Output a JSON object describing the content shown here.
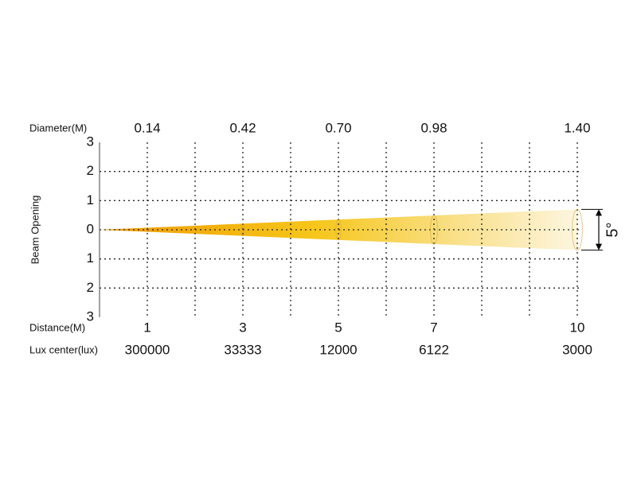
{
  "chart_data": {
    "type": "beam",
    "y_label": "Beam Opening",
    "x_label": "Distance(M)",
    "x": [
      1,
      3,
      5,
      7,
      10
    ],
    "xlim": [
      0,
      10
    ],
    "xticks": [
      1,
      2,
      3,
      4,
      5,
      6,
      7,
      8,
      9,
      10
    ],
    "ylim": [
      -3,
      3
    ],
    "yticks": [
      {
        "value": -3,
        "label": "3"
      },
      {
        "value": -2,
        "label": "2"
      },
      {
        "value": -1,
        "label": "1"
      },
      0,
      1,
      2,
      3
    ],
    "grid": true,
    "series": [
      {
        "name": "Diameter(M)",
        "values": [
          0.14,
          0.42,
          0.7,
          0.98,
          1.4
        ],
        "value_labels": [
          "0.14",
          "0.42",
          "0.70",
          "0.98",
          "1.40"
        ],
        "color": "#f2a900"
      },
      {
        "name": "Lux center(lux)",
        "values": [
          300000,
          33333,
          12000,
          6122,
          3000
        ]
      }
    ],
    "beam_angle": {
      "value": 5,
      "label": "5°"
    }
  }
}
